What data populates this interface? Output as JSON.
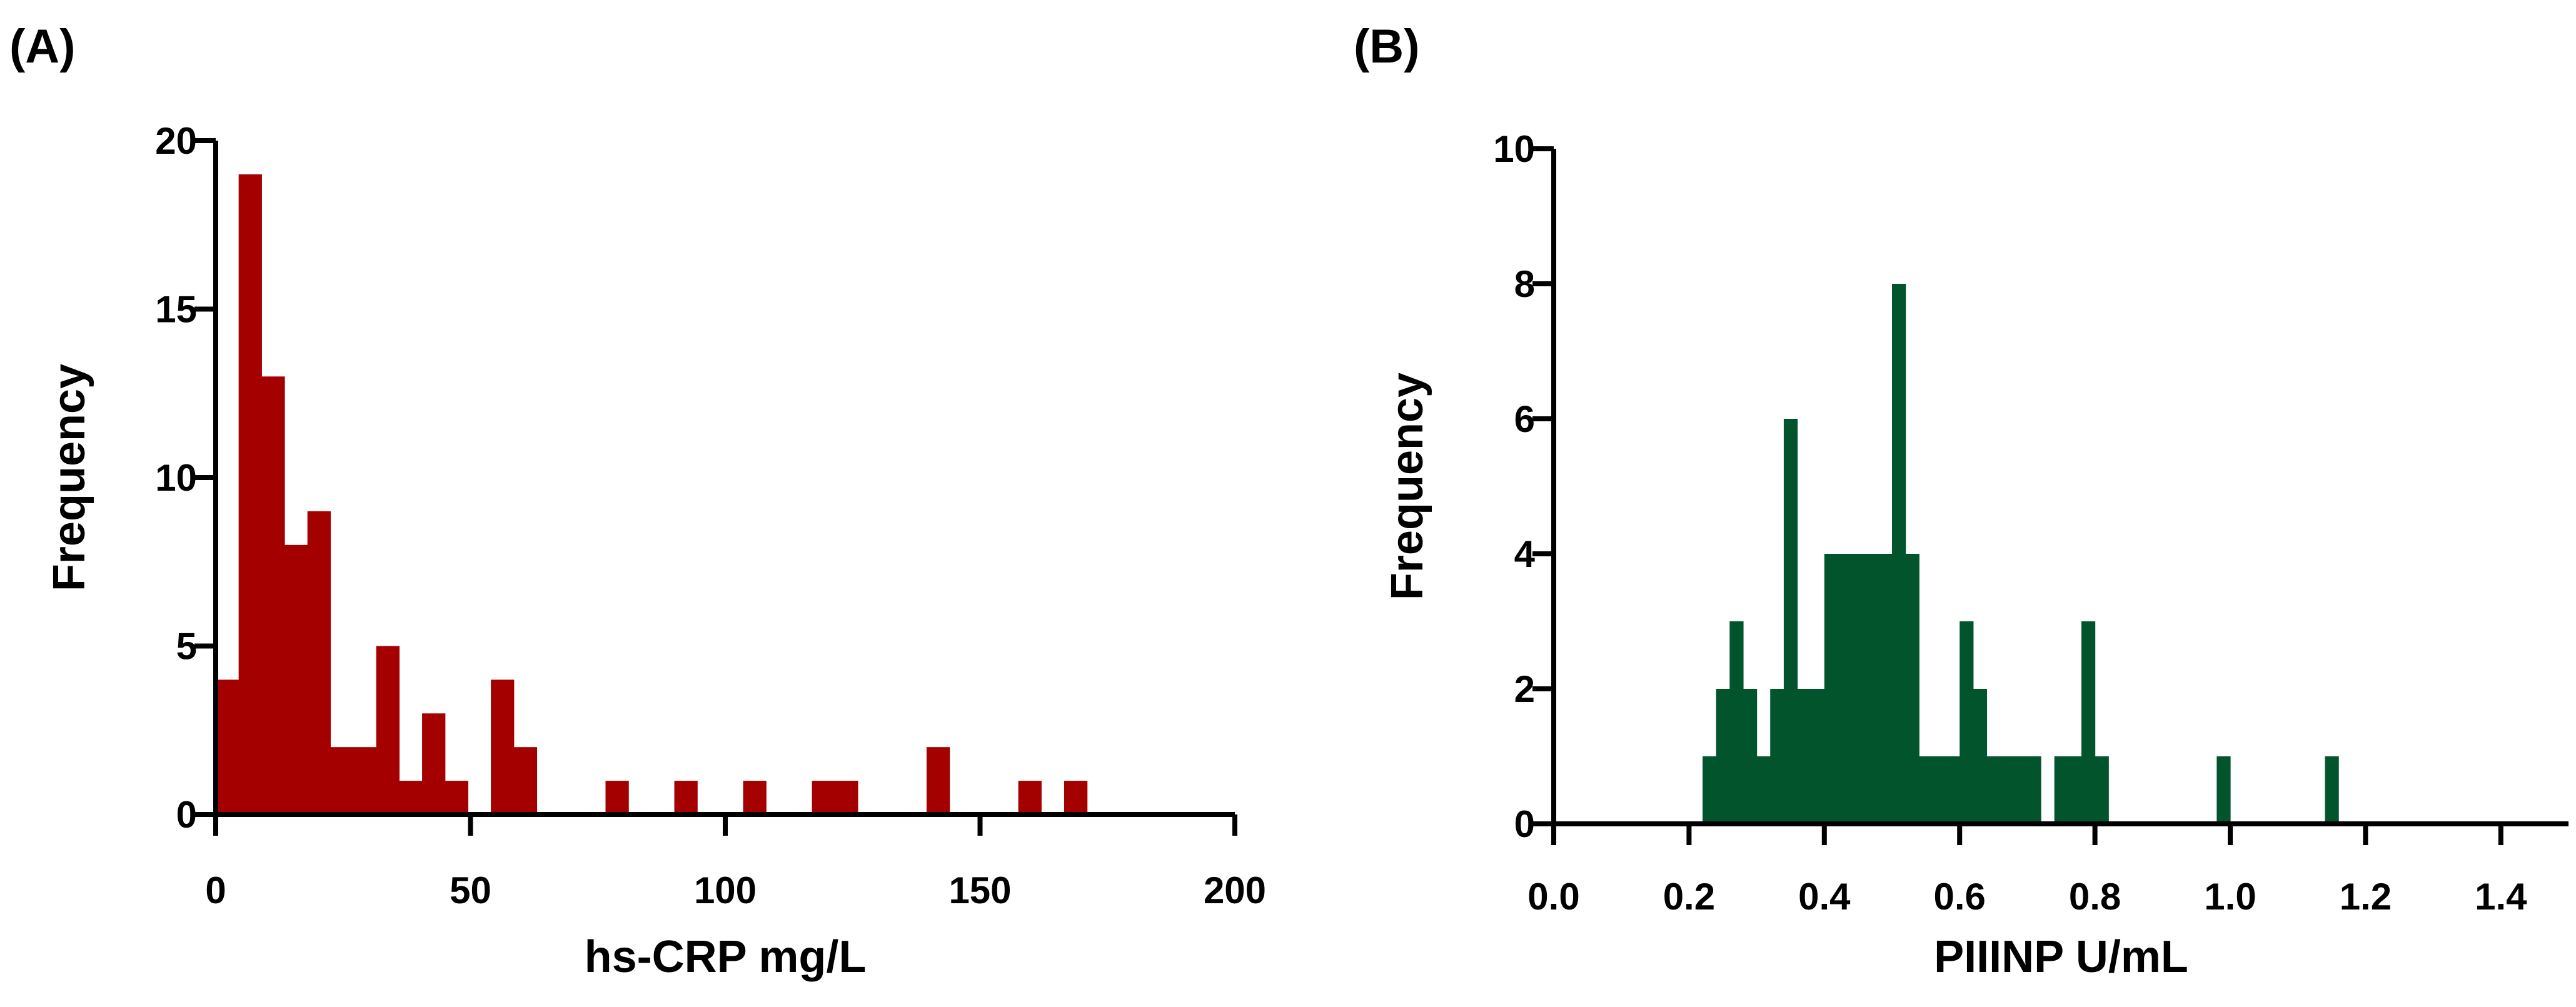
{
  "chart_data": [
    {
      "type": "bar",
      "panel_label": "(A)",
      "title": "",
      "xlabel": "hs-CRP mg/L",
      "ylabel": "Frequency",
      "xlim": [
        0,
        200
      ],
      "ylim": [
        0,
        20
      ],
      "xticks": [
        0,
        50,
        100,
        150,
        200
      ],
      "yticks": [
        0,
        5,
        10,
        15,
        20
      ],
      "color": "#a50000",
      "bin_width": 4.5,
      "bins": [
        {
          "x": 0,
          "value": 4
        },
        {
          "x": 4.5,
          "value": 19
        },
        {
          "x": 9,
          "value": 13
        },
        {
          "x": 13.5,
          "value": 8
        },
        {
          "x": 18,
          "value": 9
        },
        {
          "x": 22.5,
          "value": 2
        },
        {
          "x": 27,
          "value": 2
        },
        {
          "x": 31.5,
          "value": 5
        },
        {
          "x": 36,
          "value": 1
        },
        {
          "x": 40.5,
          "value": 3
        },
        {
          "x": 45,
          "value": 1
        },
        {
          "x": 54,
          "value": 4
        },
        {
          "x": 58.5,
          "value": 2
        },
        {
          "x": 76.5,
          "value": 1
        },
        {
          "x": 90,
          "value": 1
        },
        {
          "x": 103.5,
          "value": 1
        },
        {
          "x": 117,
          "value": 1
        },
        {
          "x": 121.5,
          "value": 1
        },
        {
          "x": 139.5,
          "value": 2
        },
        {
          "x": 157.5,
          "value": 1
        },
        {
          "x": 166.5,
          "value": 1
        }
      ]
    },
    {
      "type": "bar",
      "panel_label": "(B)",
      "title": "",
      "xlabel": "PIIINP U/mL",
      "ylabel": "Frequency",
      "xlim": [
        0,
        1.5
      ],
      "ylim": [
        0,
        10
      ],
      "xticks": [
        "0.0",
        "0.2",
        "0.4",
        "0.6",
        "0.8",
        "1.0",
        "1.2",
        "1.4"
      ],
      "yticks": [
        0,
        2,
        4,
        6,
        8,
        10
      ],
      "color": "#02542c",
      "bin_width": 0.02,
      "bins": [
        {
          "x": 0.22,
          "value": 1
        },
        {
          "x": 0.24,
          "value": 2
        },
        {
          "x": 0.26,
          "value": 3
        },
        {
          "x": 0.28,
          "value": 2
        },
        {
          "x": 0.3,
          "value": 1
        },
        {
          "x": 0.32,
          "value": 2
        },
        {
          "x": 0.34,
          "value": 6
        },
        {
          "x": 0.36,
          "value": 2
        },
        {
          "x": 0.38,
          "value": 2
        },
        {
          "x": 0.4,
          "value": 4
        },
        {
          "x": 0.42,
          "value": 4
        },
        {
          "x": 0.44,
          "value": 4
        },
        {
          "x": 0.46,
          "value": 4
        },
        {
          "x": 0.48,
          "value": 4
        },
        {
          "x": 0.5,
          "value": 8
        },
        {
          "x": 0.52,
          "value": 4
        },
        {
          "x": 0.54,
          "value": 1
        },
        {
          "x": 0.56,
          "value": 1
        },
        {
          "x": 0.58,
          "value": 1
        },
        {
          "x": 0.6,
          "value": 3
        },
        {
          "x": 0.62,
          "value": 2
        },
        {
          "x": 0.64,
          "value": 1
        },
        {
          "x": 0.66,
          "value": 1
        },
        {
          "x": 0.68,
          "value": 1
        },
        {
          "x": 0.7,
          "value": 1
        },
        {
          "x": 0.74,
          "value": 1
        },
        {
          "x": 0.76,
          "value": 1
        },
        {
          "x": 0.78,
          "value": 3
        },
        {
          "x": 0.8,
          "value": 1
        },
        {
          "x": 0.98,
          "value": 1
        },
        {
          "x": 1.14,
          "value": 1
        }
      ]
    }
  ]
}
